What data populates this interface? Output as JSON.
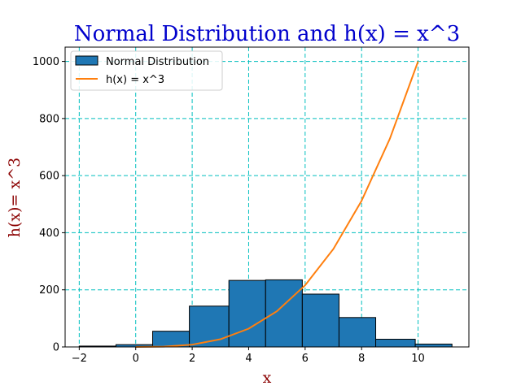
{
  "colors": {
    "title": "#0000cc",
    "axis_label": "#8b0000",
    "grid": "#00bfbf",
    "bars": "#1f77b4",
    "bar_edge": "#000000",
    "line": "#ff7f0e"
  },
  "chart_data": {
    "type": "bar",
    "title": "Normal Distribution and h(x) = x^3",
    "xlabel": "x",
    "ylabel": "h(x)= x^3",
    "xlim": [
      -2.5,
      11.8
    ],
    "ylim": [
      0,
      1050
    ],
    "x_ticks": [
      -2,
      0,
      2,
      4,
      6,
      8,
      10
    ],
    "x_tick_labels": [
      "−2",
      "0",
      "2",
      "4",
      "6",
      "8",
      "10"
    ],
    "y_ticks": [
      0,
      200,
      400,
      600,
      800,
      1000
    ],
    "y_tick_labels": [
      "0",
      "200",
      "400",
      "600",
      "800",
      "1000"
    ],
    "grid": true,
    "grid_style": "dashed",
    "legend_position": "top-left",
    "series": [
      {
        "name": "Normal Distribution",
        "kind": "histogram",
        "bin_edges": [
          -2.0,
          -0.7,
          0.6,
          1.9,
          3.3,
          4.6,
          5.9,
          7.2,
          8.5,
          9.9,
          11.2
        ],
        "values": [
          3,
          8,
          55,
          143,
          233,
          235,
          185,
          103,
          27,
          10
        ]
      },
      {
        "name": "h(x) = x^3",
        "kind": "line",
        "x": [
          0,
          1,
          2,
          3,
          4,
          5,
          6,
          7,
          8,
          9,
          10
        ],
        "y": [
          0,
          1,
          8,
          27,
          64,
          125,
          216,
          343,
          512,
          729,
          1000
        ]
      }
    ]
  }
}
